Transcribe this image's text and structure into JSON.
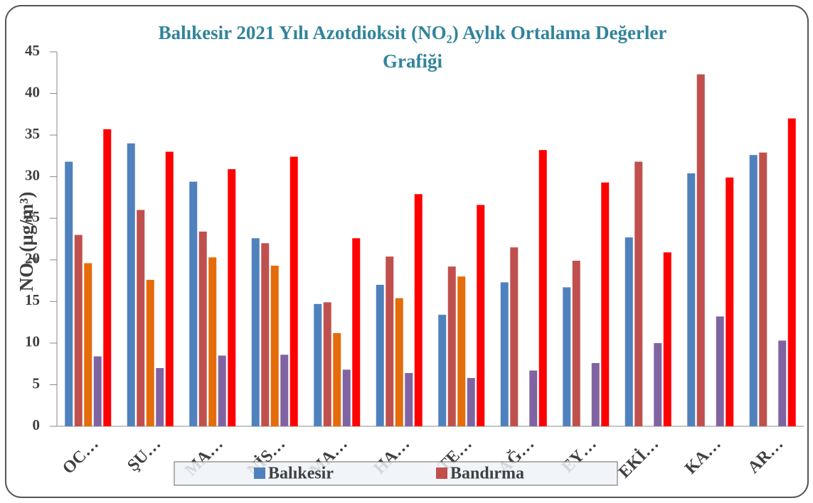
{
  "chart_data": {
    "type": "bar",
    "title": "Balıkesir 2021 Yılı Azotdioksit (NO₂) Aylık Ortalama Değerler Grafiği",
    "y_label": "NO₂ (µg/m³)",
    "categories": [
      "OC…",
      "ŞU…",
      "MA…",
      "NİS…",
      "MA…",
      "HA…",
      "TE…",
      "AĞ…",
      "EY…",
      "EKİ…",
      "KA…",
      "AR…"
    ],
    "series": [
      {
        "name": "Balıkesir",
        "color": "#4f81bd",
        "values": [
          31.8,
          34.0,
          29.4,
          22.6,
          14.7,
          17.0,
          13.4,
          17.3,
          16.7,
          22.7,
          30.4,
          32.6
        ]
      },
      {
        "name": "Bandırma",
        "color": "#c0504d",
        "values": [
          23.0,
          26.0,
          23.4,
          22.0,
          14.9,
          20.4,
          19.2,
          21.5,
          19.9,
          31.8,
          42.3,
          32.9
        ]
      },
      {
        "color": "#e46c0a",
        "values": [
          19.6,
          17.6,
          20.3,
          19.3,
          11.2,
          15.4,
          18.0,
          null,
          null,
          null,
          null,
          null
        ]
      },
      {
        "color": "#8064a2",
        "values": [
          8.4,
          7.0,
          8.5,
          8.6,
          6.8,
          6.4,
          5.8,
          6.7,
          7.6,
          10.0,
          13.2,
          10.3
        ]
      },
      {
        "color": "#ff0000",
        "values": [
          35.7,
          33.0,
          30.9,
          32.4,
          22.6,
          27.9,
          26.6,
          33.2,
          29.3,
          20.9,
          29.9,
          37.0
        ]
      }
    ],
    "ylim": [
      0,
      45
    ],
    "yticks": [
      0,
      5,
      10,
      15,
      20,
      25,
      30,
      35,
      40,
      45
    ],
    "grid": false
  }
}
